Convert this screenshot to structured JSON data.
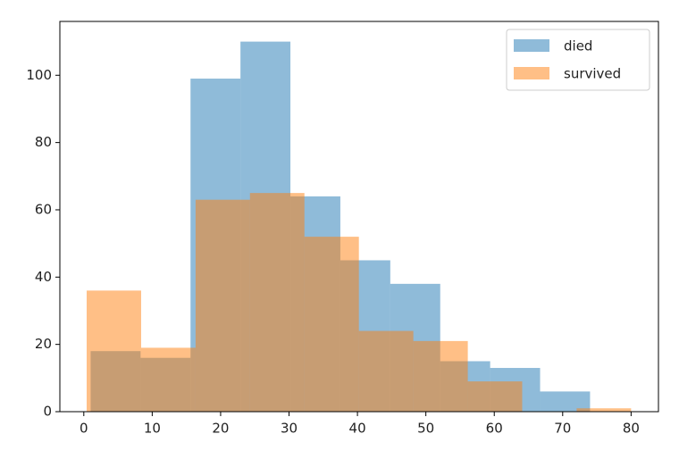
{
  "chart_data": {
    "type": "histogram",
    "series": [
      {
        "name": "died",
        "color": "#1f77b4",
        "bins": [
          1,
          8.3,
          15.6,
          22.9,
          30.2,
          37.5,
          44.8,
          52.1,
          59.4,
          66.7,
          74
        ],
        "values": [
          18,
          16,
          99,
          110,
          64,
          45,
          38,
          15,
          13,
          6
        ]
      },
      {
        "name": "survived",
        "color": "#ff7f0e",
        "bins": [
          0.42,
          8.38,
          16.34,
          24.29,
          32.25,
          40.21,
          48.17,
          56.13,
          64.08,
          72.04,
          80
        ],
        "values": [
          36,
          19,
          63,
          65,
          52,
          24,
          21,
          9,
          0,
          1
        ]
      }
    ],
    "alpha": 0.5,
    "xlim": [
      -3.5,
      84
    ],
    "xticks": [
      0,
      10,
      20,
      30,
      40,
      50,
      60,
      70,
      80
    ],
    "ylim": [
      0,
      116
    ],
    "yticks": [
      0,
      20,
      40,
      60,
      80,
      100
    ],
    "legend": "upper right"
  }
}
